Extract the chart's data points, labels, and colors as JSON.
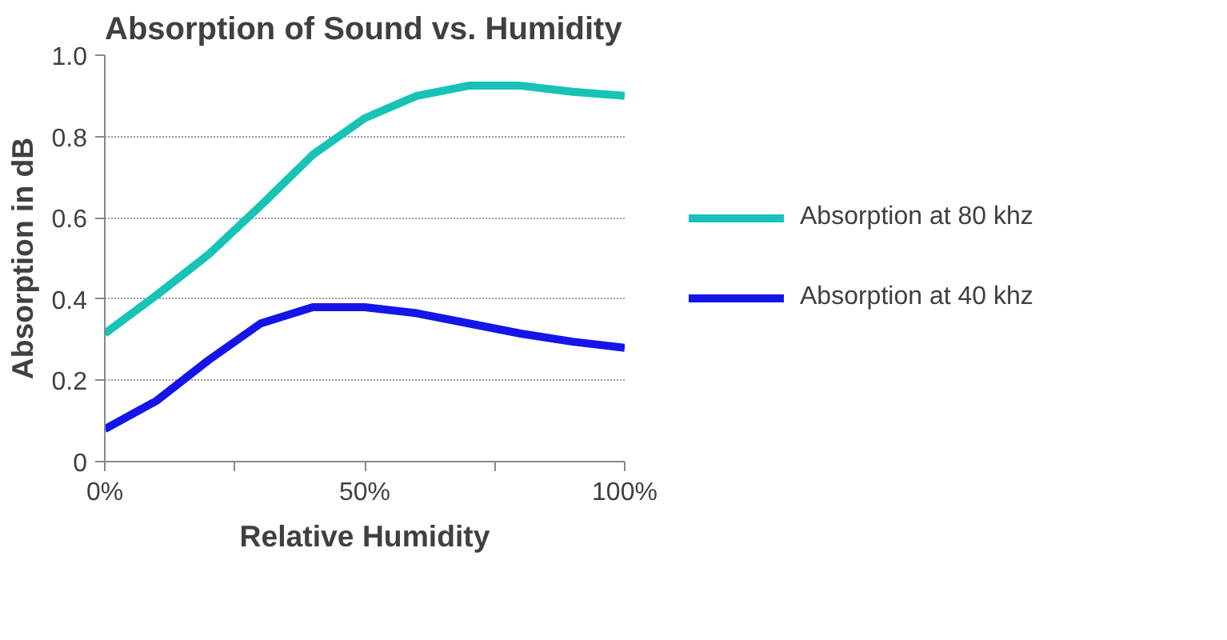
{
  "chart_data": {
    "type": "line",
    "title": "Absorption of Sound vs. Humidity",
    "xlabel": "Relative Humidity",
    "ylabel": "Absorption in dB",
    "x": [
      0,
      10,
      20,
      30,
      40,
      50,
      60,
      70,
      80,
      90,
      100
    ],
    "xlim": [
      0,
      100
    ],
    "xticks": [
      {
        "value": 0,
        "label": "0%"
      },
      {
        "value": 25,
        "label": null
      },
      {
        "value": 50,
        "label": "50%"
      },
      {
        "value": 75,
        "label": null
      },
      {
        "value": 100,
        "label": "100%"
      }
    ],
    "ylim": [
      0,
      1.0
    ],
    "yticks": [
      {
        "value": 0,
        "label": "0"
      },
      {
        "value": 0.2,
        "label": "0.2"
      },
      {
        "value": 0.4,
        "label": "0.4"
      },
      {
        "value": 0.6,
        "label": "0.6"
      },
      {
        "value": 0.8,
        "label": "0.8"
      },
      {
        "value": 1.0,
        "label": "1.0"
      }
    ],
    "grid": "y",
    "legend": "right",
    "marker": "none",
    "line_style": "solid",
    "series": [
      {
        "name": "Absorption at 80 khz",
        "color": "#17c3b6",
        "values": [
          0.315,
          0.41,
          0.51,
          0.63,
          0.755,
          0.845,
          0.9,
          0.925,
          0.925,
          0.91,
          0.9
        ]
      },
      {
        "name": "Absorption at 40 khz",
        "color": "#1515e8",
        "values": [
          0.08,
          0.15,
          0.25,
          0.34,
          0.38,
          0.38,
          0.365,
          0.34,
          0.315,
          0.295,
          0.28
        ]
      }
    ]
  }
}
